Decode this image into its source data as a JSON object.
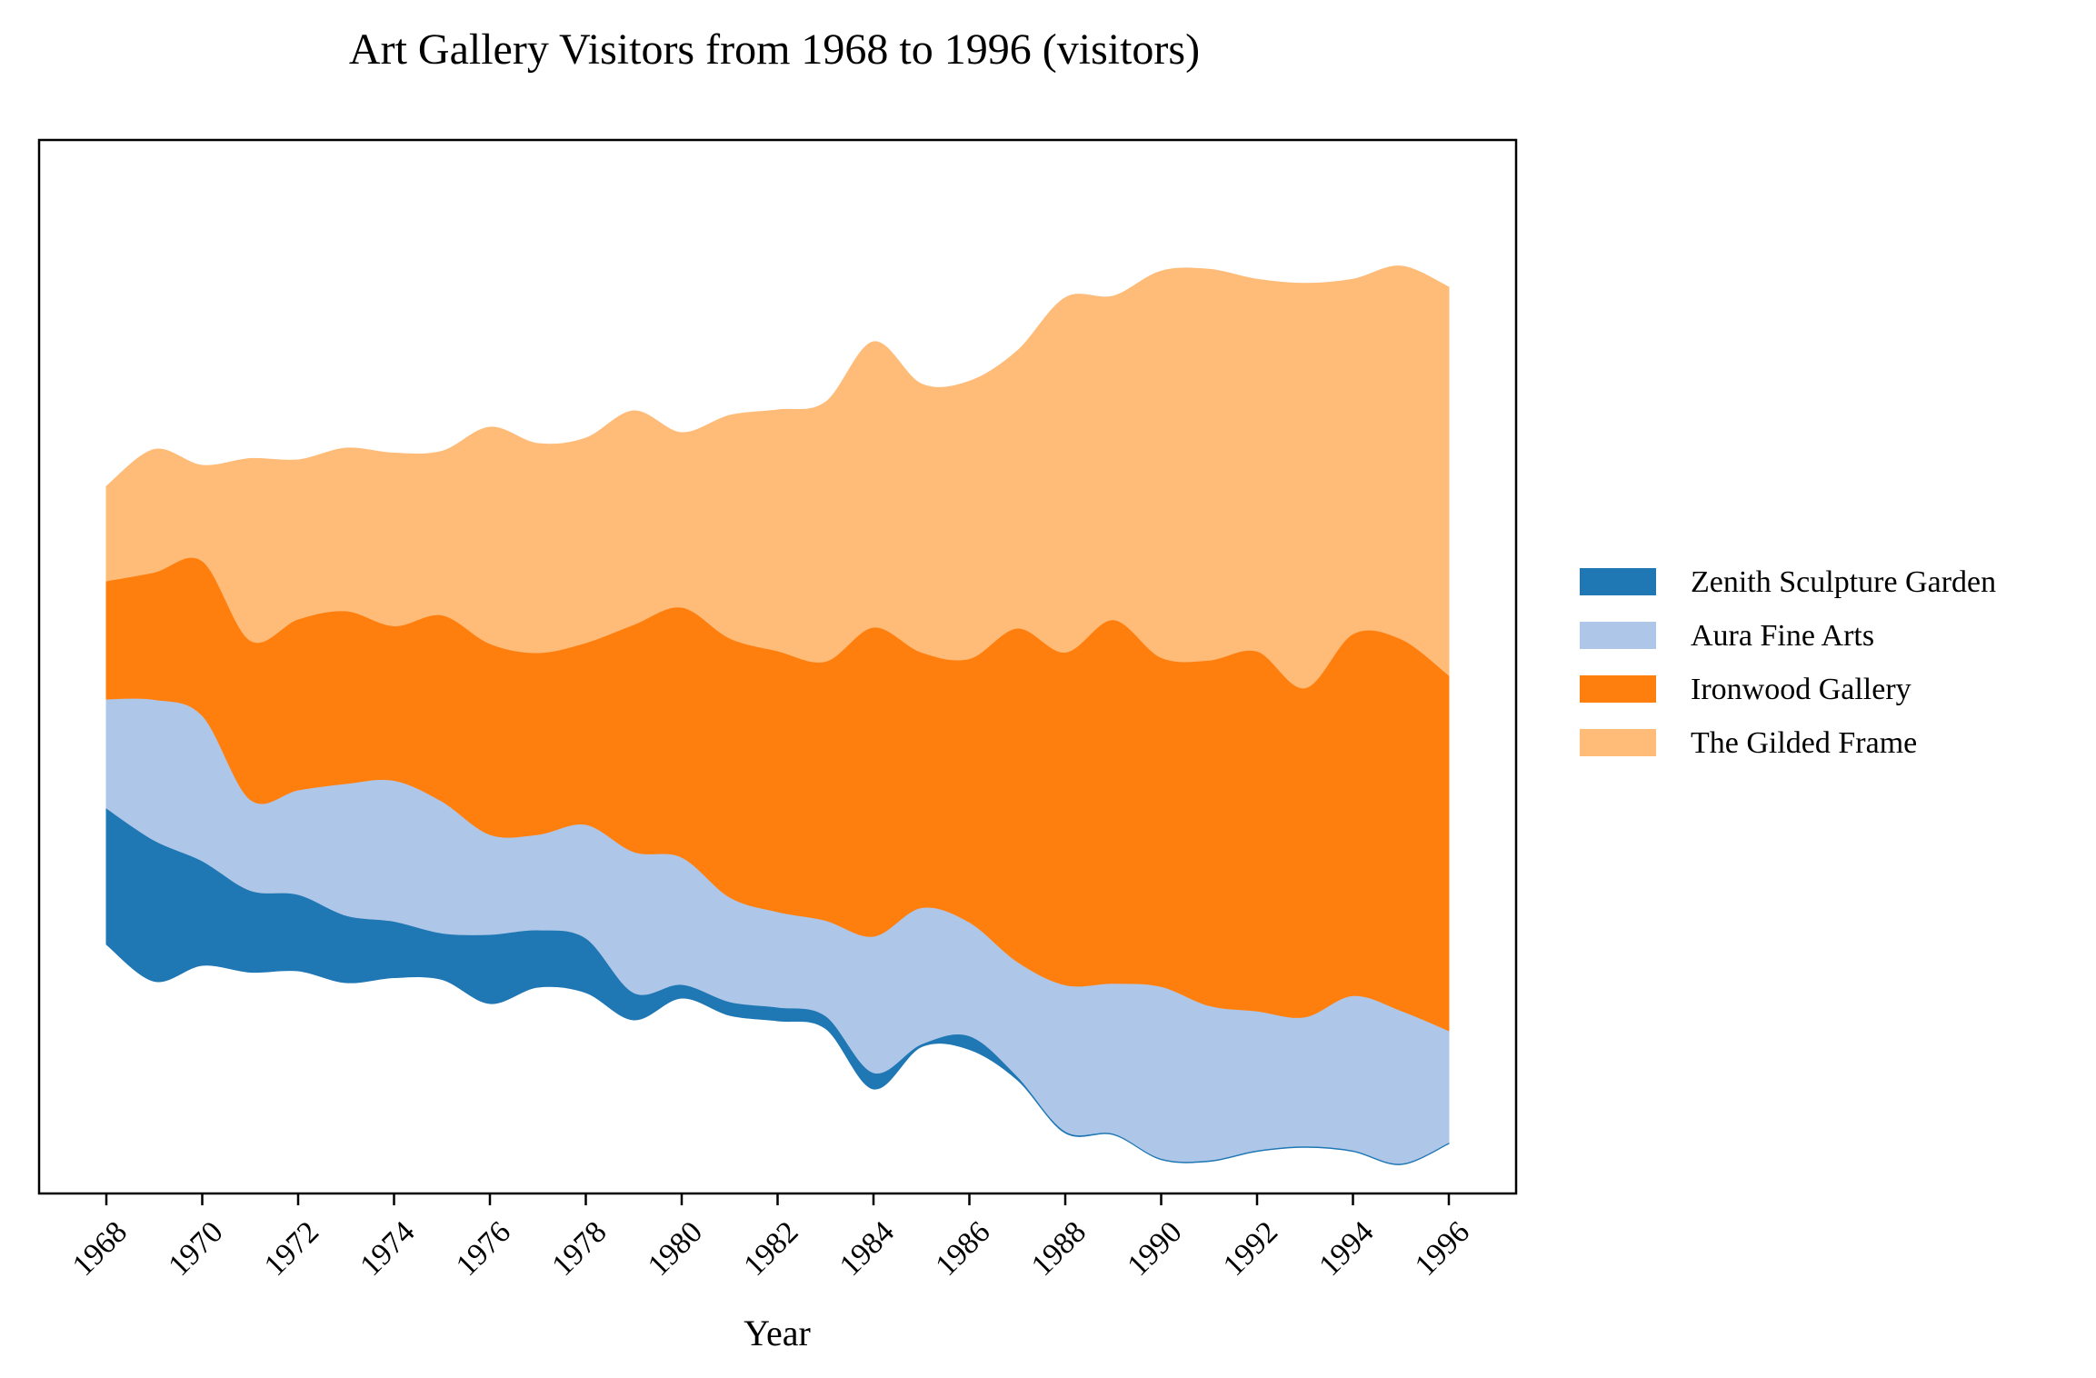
{
  "chart_data": {
    "type": "area",
    "subtype": "streamgraph",
    "title": "Art Gallery Visitors from 1968 to 1996 (visitors)",
    "xlabel": "Year",
    "ylabel": "",
    "x": [
      1968,
      1969,
      1970,
      1971,
      1972,
      1973,
      1974,
      1975,
      1976,
      1977,
      1978,
      1979,
      1980,
      1981,
      1982,
      1983,
      1984,
      1985,
      1986,
      1987,
      1988,
      1989,
      1990,
      1991,
      1992,
      1993,
      1994,
      1995,
      1996
    ],
    "x_ticks": [
      "1968",
      "1970",
      "1972",
      "1974",
      "1976",
      "1978",
      "1980",
      "1982",
      "1984",
      "1986",
      "1988",
      "1990",
      "1992",
      "1994",
      "1996"
    ],
    "y_ticks_visible": false,
    "legend_position": "right",
    "series": [
      {
        "name": "Zenith Sculpture Garden",
        "color": "#1f77b4",
        "values": [
          1500,
          1550,
          1150,
          900,
          840,
          740,
          620,
          510,
          760,
          630,
          600,
          300,
          150,
          150,
          150,
          140,
          180,
          30,
          150,
          40,
          20,
          15,
          15,
          15,
          15,
          15,
          15,
          15,
          15
        ]
      },
      {
        "name": "Aura Fine Arts",
        "color": "#aec7e8",
        "values": [
          1200,
          1550,
          1600,
          1000,
          1150,
          1450,
          1550,
          1450,
          1100,
          1050,
          1250,
          1550,
          1400,
          1150,
          1050,
          1050,
          1500,
          1500,
          1250,
          1260,
          1610,
          1650,
          1890,
          1700,
          1530,
          1420,
          1700,
          1680,
          1230
        ]
      },
      {
        "name": "Ironwood Gallery",
        "color": "#ff7f0e",
        "values": [
          1300,
          1400,
          1700,
          1750,
          1880,
          1900,
          1700,
          2050,
          2100,
          2000,
          2000,
          2500,
          2750,
          2850,
          2870,
          2850,
          3400,
          2810,
          2900,
          3670,
          3660,
          4000,
          3620,
          3800,
          3960,
          3620,
          3980,
          4090,
          3910
        ]
      },
      {
        "name": "The Gilded Frame",
        "color": "#ffbb78",
        "values": [
          1040,
          1350,
          1050,
          2000,
          1750,
          1790,
          1900,
          1800,
          2380,
          2300,
          2250,
          2350,
          1920,
          2450,
          2650,
          2850,
          3140,
          2950,
          3050,
          3050,
          3900,
          3560,
          4250,
          4300,
          4090,
          4450,
          3900,
          4100,
          4270
        ]
      }
    ]
  }
}
